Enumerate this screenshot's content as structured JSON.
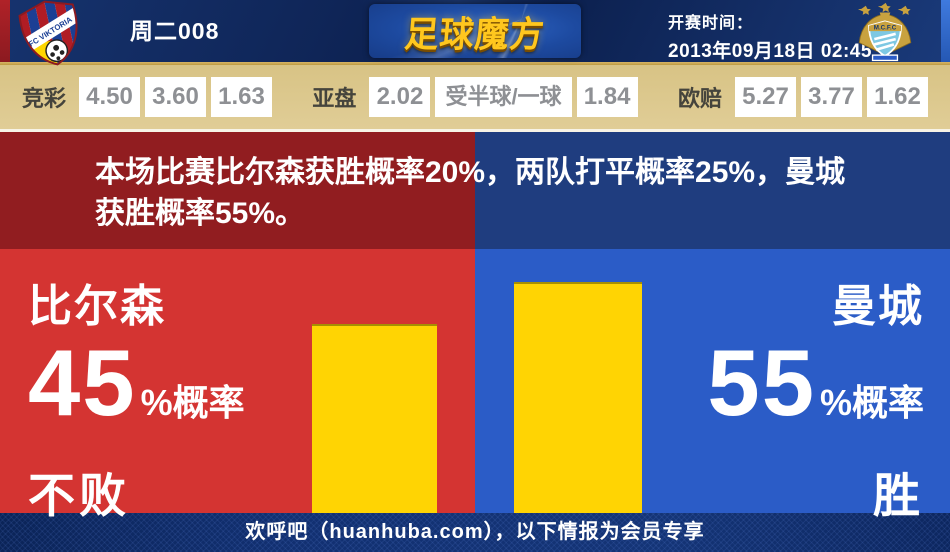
{
  "header": {
    "match_code": "周二008",
    "brand": "足球魔方",
    "kickoff_label": "开赛时间：",
    "kickoff_time": "2013年09月18日 02:45",
    "home_crest": "fc-viktoria-plzen-crest",
    "away_crest": "manchester-city-crest"
  },
  "odds_bar": {
    "jingcai": {
      "label": "竞彩",
      "values": [
        "4.50",
        "3.60",
        "1.63"
      ]
    },
    "yapan": {
      "label": "亚盘",
      "home_odds": "2.02",
      "handicap": "受半球/一球",
      "away_odds": "1.84"
    },
    "oupei": {
      "label": "欧赔",
      "values": [
        "5.27",
        "3.77",
        "1.62"
      ]
    }
  },
  "summary": {
    "text": "本场比赛比尔森获胜概率20%，两队打平概率25%，曼城获胜概率55%。"
  },
  "chart_data": {
    "type": "bar",
    "bars": [
      {
        "team": "比尔森",
        "percent": 45,
        "suffix": "%概率",
        "outcome": "不败",
        "bar_color": "#ffd403",
        "panel_color": "#d43432"
      },
      {
        "team": "曼城",
        "percent": 55,
        "suffix": "%概率",
        "outcome": "胜",
        "bar_color": "#ffd403",
        "panel_color": "#2b5cc7"
      }
    ],
    "probabilities": {
      "home_win_pct": 20,
      "draw_pct": 25,
      "away_win_pct": 55
    },
    "ylim": [
      0,
      62.9
    ]
  },
  "footer": {
    "text": "欢呼吧（huanhuba.com），以下情报为会员专享"
  },
  "colors": {
    "dark_red_band": "#911d20",
    "dark_blue_band": "#1f3d7f",
    "bright_red_panel": "#d43432",
    "bright_blue_panel": "#2b5cc7",
    "bar_yellow": "#ffd403",
    "odds_bar_bg": "#dcc88e",
    "gold_line": "#c9a750",
    "footer_navy": "#123071"
  }
}
